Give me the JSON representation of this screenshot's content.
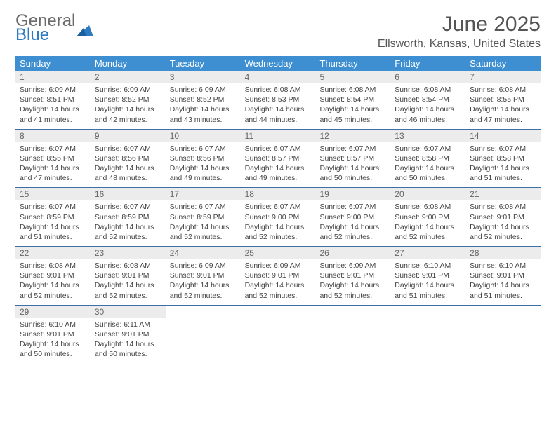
{
  "logo": {
    "line1": "General",
    "line2": "Blue"
  },
  "header": {
    "month_title": "June 2025",
    "location": "Ellsworth, Kansas, United States"
  },
  "day_names": [
    "Sunday",
    "Monday",
    "Tuesday",
    "Wednesday",
    "Thursday",
    "Friday",
    "Saturday"
  ],
  "colors": {
    "header_bg": "#3d8fd1",
    "header_text": "#ffffff",
    "daynum_bg": "#ececec",
    "week_divider": "#3d6fa7",
    "logo_grey": "#6b6b6b",
    "logo_blue": "#2f7ac0",
    "body_text": "#444444",
    "page_bg": "#ffffff"
  },
  "labels": {
    "sunrise_prefix": "Sunrise: ",
    "sunset_prefix": "Sunset: ",
    "daylight_prefix": "Daylight: "
  },
  "weeks": [
    [
      {
        "day": "1",
        "sunrise": "6:09 AM",
        "sunset": "8:51 PM",
        "daylight": "14 hours and 41 minutes."
      },
      {
        "day": "2",
        "sunrise": "6:09 AM",
        "sunset": "8:52 PM",
        "daylight": "14 hours and 42 minutes."
      },
      {
        "day": "3",
        "sunrise": "6:09 AM",
        "sunset": "8:52 PM",
        "daylight": "14 hours and 43 minutes."
      },
      {
        "day": "4",
        "sunrise": "6:08 AM",
        "sunset": "8:53 PM",
        "daylight": "14 hours and 44 minutes."
      },
      {
        "day": "5",
        "sunrise": "6:08 AM",
        "sunset": "8:54 PM",
        "daylight": "14 hours and 45 minutes."
      },
      {
        "day": "6",
        "sunrise": "6:08 AM",
        "sunset": "8:54 PM",
        "daylight": "14 hours and 46 minutes."
      },
      {
        "day": "7",
        "sunrise": "6:08 AM",
        "sunset": "8:55 PM",
        "daylight": "14 hours and 47 minutes."
      }
    ],
    [
      {
        "day": "8",
        "sunrise": "6:07 AM",
        "sunset": "8:55 PM",
        "daylight": "14 hours and 47 minutes."
      },
      {
        "day": "9",
        "sunrise": "6:07 AM",
        "sunset": "8:56 PM",
        "daylight": "14 hours and 48 minutes."
      },
      {
        "day": "10",
        "sunrise": "6:07 AM",
        "sunset": "8:56 PM",
        "daylight": "14 hours and 49 minutes."
      },
      {
        "day": "11",
        "sunrise": "6:07 AM",
        "sunset": "8:57 PM",
        "daylight": "14 hours and 49 minutes."
      },
      {
        "day": "12",
        "sunrise": "6:07 AM",
        "sunset": "8:57 PM",
        "daylight": "14 hours and 50 minutes."
      },
      {
        "day": "13",
        "sunrise": "6:07 AM",
        "sunset": "8:58 PM",
        "daylight": "14 hours and 50 minutes."
      },
      {
        "day": "14",
        "sunrise": "6:07 AM",
        "sunset": "8:58 PM",
        "daylight": "14 hours and 51 minutes."
      }
    ],
    [
      {
        "day": "15",
        "sunrise": "6:07 AM",
        "sunset": "8:59 PM",
        "daylight": "14 hours and 51 minutes."
      },
      {
        "day": "16",
        "sunrise": "6:07 AM",
        "sunset": "8:59 PM",
        "daylight": "14 hours and 52 minutes."
      },
      {
        "day": "17",
        "sunrise": "6:07 AM",
        "sunset": "8:59 PM",
        "daylight": "14 hours and 52 minutes."
      },
      {
        "day": "18",
        "sunrise": "6:07 AM",
        "sunset": "9:00 PM",
        "daylight": "14 hours and 52 minutes."
      },
      {
        "day": "19",
        "sunrise": "6:07 AM",
        "sunset": "9:00 PM",
        "daylight": "14 hours and 52 minutes."
      },
      {
        "day": "20",
        "sunrise": "6:08 AM",
        "sunset": "9:00 PM",
        "daylight": "14 hours and 52 minutes."
      },
      {
        "day": "21",
        "sunrise": "6:08 AM",
        "sunset": "9:01 PM",
        "daylight": "14 hours and 52 minutes."
      }
    ],
    [
      {
        "day": "22",
        "sunrise": "6:08 AM",
        "sunset": "9:01 PM",
        "daylight": "14 hours and 52 minutes."
      },
      {
        "day": "23",
        "sunrise": "6:08 AM",
        "sunset": "9:01 PM",
        "daylight": "14 hours and 52 minutes."
      },
      {
        "day": "24",
        "sunrise": "6:09 AM",
        "sunset": "9:01 PM",
        "daylight": "14 hours and 52 minutes."
      },
      {
        "day": "25",
        "sunrise": "6:09 AM",
        "sunset": "9:01 PM",
        "daylight": "14 hours and 52 minutes."
      },
      {
        "day": "26",
        "sunrise": "6:09 AM",
        "sunset": "9:01 PM",
        "daylight": "14 hours and 52 minutes."
      },
      {
        "day": "27",
        "sunrise": "6:10 AM",
        "sunset": "9:01 PM",
        "daylight": "14 hours and 51 minutes."
      },
      {
        "day": "28",
        "sunrise": "6:10 AM",
        "sunset": "9:01 PM",
        "daylight": "14 hours and 51 minutes."
      }
    ],
    [
      {
        "day": "29",
        "sunrise": "6:10 AM",
        "sunset": "9:01 PM",
        "daylight": "14 hours and 50 minutes."
      },
      {
        "day": "30",
        "sunrise": "6:11 AM",
        "sunset": "9:01 PM",
        "daylight": "14 hours and 50 minutes."
      },
      null,
      null,
      null,
      null,
      null
    ]
  ]
}
